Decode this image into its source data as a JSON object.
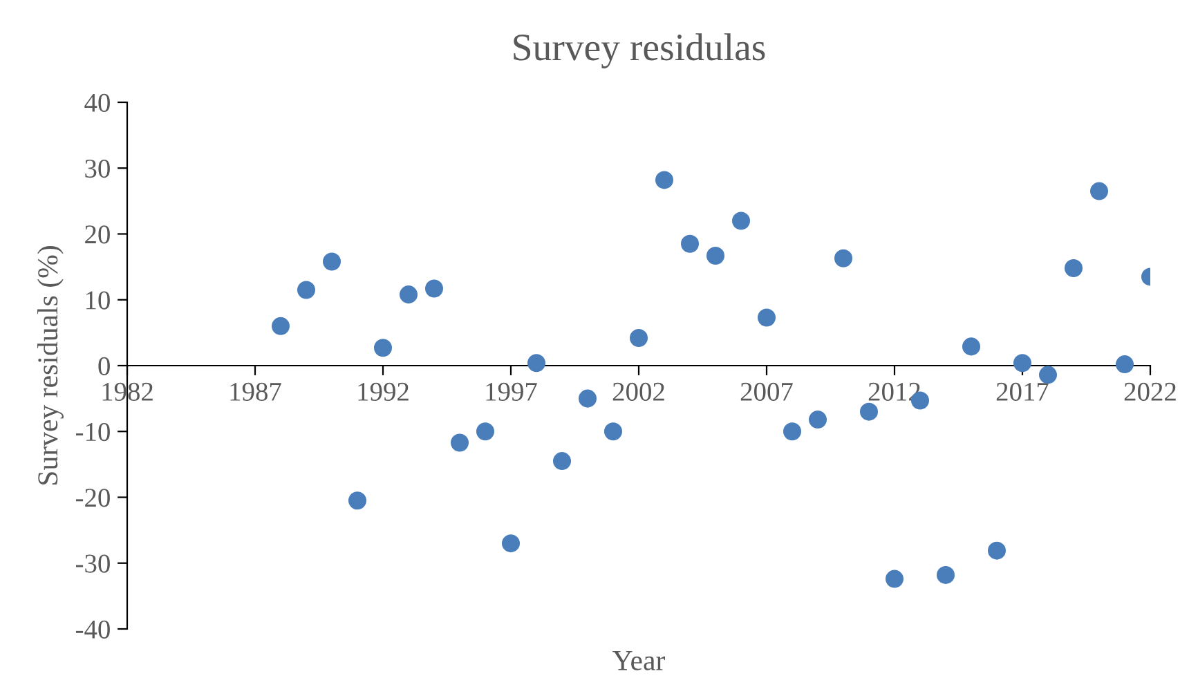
{
  "chart_data": {
    "type": "scatter",
    "title": "Survey residulas",
    "xlabel": "Year",
    "ylabel": "Survey residuals (%)",
    "x": [
      1988,
      1989,
      1990,
      1991,
      1992,
      1993,
      1994,
      1995,
      1996,
      1997,
      1998,
      1999,
      2000,
      2001,
      2002,
      2003,
      2004,
      2005,
      2006,
      2007,
      2008,
      2009,
      2010,
      2011,
      2012,
      2013,
      2014,
      2015,
      2016,
      2017,
      2018,
      2019,
      2020,
      2021,
      2022
    ],
    "series": [
      {
        "color": "#4a7ebb",
        "values": [
          6,
          11.5,
          15.8,
          -20.5,
          2.7,
          10.8,
          11.7,
          -11.7,
          -10,
          -27,
          0.4,
          -14.5,
          -5,
          -10,
          4.2,
          28.2,
          18.5,
          16.7,
          22,
          7.3,
          -10,
          -8.2,
          16.3,
          -7,
          -32.4,
          -5.3,
          -31.8,
          2.9,
          -28.1,
          0.4,
          -1.4,
          14.8,
          26.5,
          0.2,
          13.5
        ]
      }
    ],
    "xlim": [
      1982,
      2022
    ],
    "xticks": [
      1982,
      1987,
      1992,
      1997,
      2002,
      2007,
      2012,
      2017,
      2022
    ],
    "ylim": [
      -40,
      40
    ],
    "yticks": [
      -40,
      -30,
      -20,
      -10,
      0,
      10,
      20,
      30,
      40
    ],
    "grid": false,
    "legend": false,
    "marker": "circle"
  }
}
